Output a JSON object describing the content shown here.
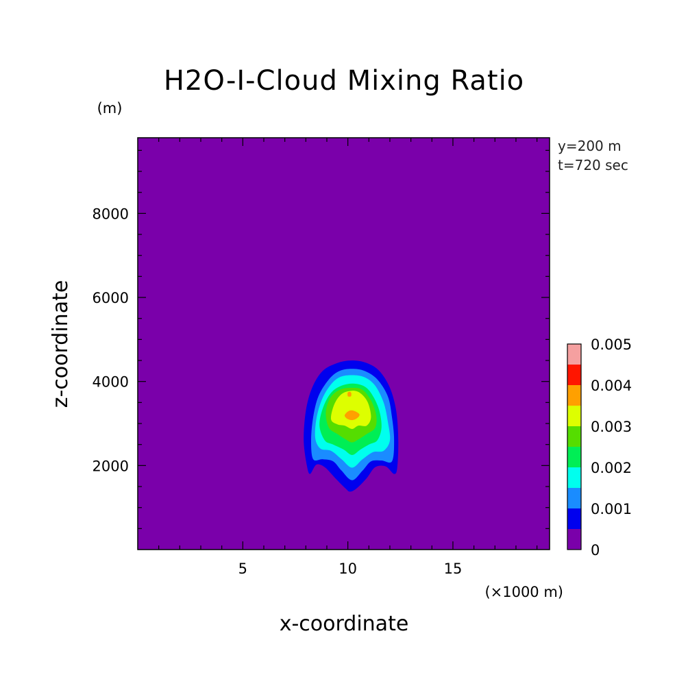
{
  "chart_data": {
    "type": "heatmap",
    "title": "H2O-I-Cloud Mixing Ratio",
    "xlabel": "x-coordinate",
    "ylabel": "z-coordinate",
    "x_unit": "(×1000 m)",
    "y_unit": "(m)",
    "annotations": [
      "y=200 m",
      "t=720 sec"
    ],
    "xlim": [
      0,
      19.6
    ],
    "ylim": [
      0,
      9800
    ],
    "xticks": [
      5,
      10,
      15
    ],
    "yticks": [
      2000,
      4000,
      6000,
      8000
    ],
    "grid": false,
    "background_color": "#7a00aa",
    "colorbar": {
      "levels": [
        0,
        0.0005,
        0.001,
        0.0015,
        0.002,
        0.0025,
        0.003,
        0.0035,
        0.004,
        0.0045,
        0.005
      ],
      "colors": [
        "#7a00aa",
        "#0000ee",
        "#1a8cff",
        "#00ffee",
        "#00ee55",
        "#55dd00",
        "#ddff00",
        "#ffa000",
        "#ff1500",
        "#f5a0a0"
      ],
      "labels": [
        "0",
        "0.001",
        "0.002",
        "0.003",
        "0.004",
        "0.005"
      ]
    },
    "contours": [
      {
        "level": 0.0005,
        "color": "#0000ee",
        "points": [
          [
            10.2,
            4500
          ],
          [
            10.9,
            4440
          ],
          [
            11.5,
            4250
          ],
          [
            12.0,
            3850
          ],
          [
            12.3,
            3300
          ],
          [
            12.4,
            2600
          ],
          [
            12.35,
            1950
          ],
          [
            12.2,
            1800
          ],
          [
            11.8,
            1980
          ],
          [
            11.3,
            1960
          ],
          [
            10.9,
            1700
          ],
          [
            10.4,
            1450
          ],
          [
            10.1,
            1380
          ],
          [
            9.9,
            1450
          ],
          [
            9.4,
            1700
          ],
          [
            8.9,
            1960
          ],
          [
            8.5,
            2020
          ],
          [
            8.2,
            1800
          ],
          [
            8.05,
            2000
          ],
          [
            7.9,
            2600
          ],
          [
            8.0,
            3300
          ],
          [
            8.3,
            3850
          ],
          [
            8.8,
            4250
          ],
          [
            9.5,
            4440
          ]
        ]
      },
      {
        "level": 0.001,
        "color": "#1a8cff",
        "points": [
          [
            10.2,
            4300
          ],
          [
            10.8,
            4250
          ],
          [
            11.4,
            4050
          ],
          [
            11.9,
            3650
          ],
          [
            12.1,
            3150
          ],
          [
            12.2,
            2600
          ],
          [
            12.1,
            2100
          ],
          [
            11.6,
            2120
          ],
          [
            11.1,
            2100
          ],
          [
            10.7,
            1880
          ],
          [
            10.2,
            1650
          ],
          [
            9.7,
            1880
          ],
          [
            9.3,
            2100
          ],
          [
            8.8,
            2150
          ],
          [
            8.35,
            2150
          ],
          [
            8.25,
            2600
          ],
          [
            8.35,
            3150
          ],
          [
            8.6,
            3650
          ],
          [
            9.1,
            4050
          ],
          [
            9.6,
            4250
          ]
        ]
      },
      {
        "level": 0.0015,
        "color": "#00ffee",
        "points": [
          [
            10.2,
            4150
          ],
          [
            10.8,
            4100
          ],
          [
            11.3,
            3900
          ],
          [
            11.7,
            3500
          ],
          [
            11.9,
            3050
          ],
          [
            12.0,
            2600
          ],
          [
            11.7,
            2350
          ],
          [
            11.2,
            2320
          ],
          [
            10.7,
            2150
          ],
          [
            10.2,
            1950
          ],
          [
            9.7,
            2150
          ],
          [
            9.2,
            2350
          ],
          [
            8.7,
            2400
          ],
          [
            8.45,
            2650
          ],
          [
            8.5,
            3100
          ],
          [
            8.75,
            3550
          ],
          [
            9.15,
            3900
          ],
          [
            9.6,
            4100
          ]
        ]
      },
      {
        "level": 0.002,
        "color": "#00ee55",
        "points": [
          [
            10.2,
            3950
          ],
          [
            10.8,
            3880
          ],
          [
            11.2,
            3650
          ],
          [
            11.5,
            3300
          ],
          [
            11.6,
            2900
          ],
          [
            11.4,
            2600
          ],
          [
            11.0,
            2500
          ],
          [
            10.6,
            2380
          ],
          [
            10.2,
            2250
          ],
          [
            9.8,
            2380
          ],
          [
            9.3,
            2500
          ],
          [
            8.9,
            2600
          ],
          [
            8.65,
            2950
          ],
          [
            8.8,
            3350
          ],
          [
            9.15,
            3700
          ],
          [
            9.6,
            3880
          ]
        ]
      },
      {
        "level": 0.0025,
        "color": "#55dd00",
        "points": [
          [
            10.2,
            3850
          ],
          [
            10.7,
            3800
          ],
          [
            11.1,
            3550
          ],
          [
            11.35,
            3200
          ],
          [
            11.3,
            2900
          ],
          [
            10.9,
            2750
          ],
          [
            10.5,
            2620
          ],
          [
            10.2,
            2550
          ],
          [
            9.9,
            2620
          ],
          [
            9.5,
            2750
          ],
          [
            9.1,
            2900
          ],
          [
            8.95,
            3250
          ],
          [
            9.15,
            3600
          ],
          [
            9.6,
            3800
          ]
        ]
      },
      {
        "level": 0.003,
        "color": "#ddff00",
        "points": [
          [
            10.2,
            3780
          ],
          [
            10.6,
            3720
          ],
          [
            10.95,
            3500
          ],
          [
            11.1,
            3150
          ],
          [
            10.9,
            2950
          ],
          [
            10.5,
            2950
          ],
          [
            10.2,
            2870
          ],
          [
            9.85,
            2950
          ],
          [
            9.5,
            2980
          ],
          [
            9.2,
            3100
          ],
          [
            9.35,
            3450
          ],
          [
            9.7,
            3700
          ]
        ]
      },
      {
        "level": 0.0035,
        "color": "#ffa000",
        "points": [
          [
            10.05,
            3300
          ],
          [
            10.3,
            3300
          ],
          [
            10.55,
            3220
          ],
          [
            10.45,
            3130
          ],
          [
            10.2,
            3080
          ],
          [
            9.95,
            3120
          ],
          [
            9.85,
            3200
          ]
        ]
      },
      {
        "level": 0.0035,
        "color": "#ffa000",
        "points": [
          [
            10.0,
            3740
          ],
          [
            10.15,
            3740
          ],
          [
            10.15,
            3650
          ],
          [
            10.0,
            3650
          ]
        ]
      }
    ]
  }
}
